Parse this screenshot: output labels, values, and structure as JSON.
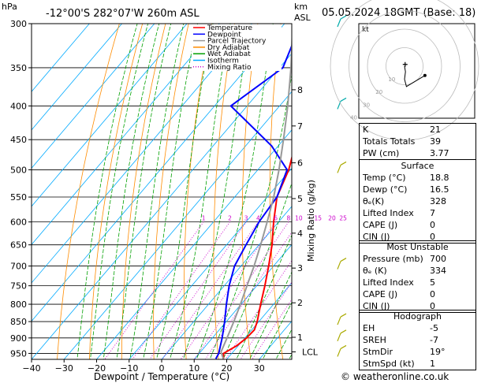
{
  "header": {
    "location": "-12°00'S  282°07'W  260m  ASL",
    "datetime": "05.05.2024  18GMT  (Base: 18)",
    "hpa_label": "hPa",
    "km_label": "km",
    "asl_label": "ASL"
  },
  "legend": [
    {
      "label": "Temperature",
      "color": "#ff0000",
      "style": "solid"
    },
    {
      "label": "Dewpoint",
      "color": "#0000ff",
      "style": "solid"
    },
    {
      "label": "Parcel Trajectory",
      "color": "#999999",
      "style": "solid"
    },
    {
      "label": "Dry Adiabat",
      "color": "#ff8c00",
      "style": "solid"
    },
    {
      "label": "Wet Adiabat",
      "color": "#00a000",
      "style": "solid"
    },
    {
      "label": "Isotherm",
      "color": "#00aaff",
      "style": "solid"
    },
    {
      "label": "Mixing Ratio",
      "color": "#cc00cc",
      "style": "dotted"
    }
  ],
  "chart_data": {
    "type": "line",
    "xlabel": "Dewpoint / Temperature (°C)",
    "ylabel_right": "Mixing Ratio (g/kg)",
    "x_ticks": [
      -40,
      -30,
      -20,
      -10,
      0,
      10,
      20,
      30
    ],
    "xlim": [
      -40,
      40
    ],
    "pressure_levels": [
      300,
      350,
      400,
      450,
      500,
      550,
      600,
      650,
      700,
      750,
      800,
      850,
      900,
      950
    ],
    "ylim": [
      300,
      970
    ],
    "y_scale": "log",
    "km_ticks": [
      {
        "km": "1",
        "p": 898
      },
      {
        "km": "2",
        "p": 796
      },
      {
        "km": "3",
        "p": 705
      },
      {
        "km": "4",
        "p": 624
      },
      {
        "km": "5",
        "p": 553
      },
      {
        "km": "6",
        "p": 488
      },
      {
        "km": "7",
        "p": 429
      },
      {
        "km": "8",
        "p": 378
      }
    ],
    "lcl": {
      "label": "LCL",
      "p": 945
    },
    "mixing_ratio_labels": [
      "1",
      "2",
      "3",
      "4",
      "6",
      "8",
      "10",
      "15",
      "20",
      "25"
    ],
    "mixing_ratios": [
      1,
      2,
      3,
      4,
      6,
      8,
      10,
      15,
      20,
      25
    ],
    "series": [
      {
        "name": "Temperature",
        "color": "#ff0000",
        "p": [
          968,
          950,
          925,
          900,
          875,
          850,
          800,
          750,
          700,
          650,
          600,
          550,
          500,
          450,
          400,
          350
        ],
        "t": [
          18.8,
          17.5,
          19.5,
          20.5,
          20.8,
          19.5,
          16.0,
          12.5,
          8.5,
          4.0,
          -1.5,
          -7.0,
          -10.5,
          -16.0,
          -22.0,
          -31.0
        ]
      },
      {
        "name": "Dewpoint",
        "color": "#0000ff",
        "p": [
          968,
          950,
          925,
          900,
          850,
          800,
          750,
          700,
          650,
          600,
          550,
          500,
          460,
          400,
          350,
          300
        ],
        "t": [
          16.5,
          16.0,
          14.5,
          13.0,
          9.5,
          5.5,
          1.5,
          -2.0,
          -4.0,
          -6.0,
          -7.0,
          -11.0,
          -22.0,
          -45.0,
          -39.0,
          -45.0
        ]
      },
      {
        "name": "Parcel Trajectory",
        "color": "#999999",
        "p": [
          968,
          945,
          900,
          850,
          800,
          750,
          700,
          650,
          600,
          550,
          500,
          450,
          400,
          350,
          300
        ],
        "t": [
          18.8,
          16.3,
          14.5,
          12.3,
          9.8,
          7.0,
          4.0,
          0.5,
          -3.5,
          -8.0,
          -13.5,
          -20.0,
          -27.5,
          -36.5,
          -47.5
        ]
      }
    ]
  },
  "wind_barbs": [
    {
      "p": 300,
      "color": "#00aaaa"
    },
    {
      "p": 400,
      "color": "#00aaaa"
    },
    {
      "p": 500,
      "color": "#aaaa00"
    },
    {
      "p": 700,
      "color": "#aaaa00"
    },
    {
      "p": 850,
      "color": "#aaaa00"
    },
    {
      "p": 900,
      "color": "#aaaa00"
    },
    {
      "p": 950,
      "color": "#aaaa00"
    }
  ],
  "hodograph": {
    "label": "kt",
    "ring_labels": [
      "10",
      "20",
      "30",
      "40"
    ],
    "storm_motion": {
      "dir_deg": 19,
      "speed_kt": 1
    },
    "trace_kt": [
      [
        0,
        0
      ],
      [
        0.5,
        -3
      ],
      [
        0,
        -7
      ],
      [
        1,
        -11
      ],
      [
        6,
        -8
      ],
      [
        11,
        -5
      ]
    ]
  },
  "indices": [
    {
      "label": "K",
      "value": "21"
    },
    {
      "label": "Totals Totals",
      "value": "39"
    },
    {
      "label": "PW (cm)",
      "value": "3.77"
    }
  ],
  "surface": {
    "title": "Surface",
    "rows": [
      {
        "label": "Temp (°C)",
        "value": "18.8"
      },
      {
        "label": "Dewp (°C)",
        "value": "16.5"
      },
      {
        "label": "θₑ(K)",
        "value": "328"
      },
      {
        "label": "Lifted Index",
        "value": "7"
      },
      {
        "label": "CAPE (J)",
        "value": "0"
      },
      {
        "label": "CIN (J)",
        "value": "0"
      }
    ]
  },
  "most_unstable": {
    "title": "Most Unstable",
    "rows": [
      {
        "label": "Pressure (mb)",
        "value": "700"
      },
      {
        "label": "θₑ (K)",
        "value": "334"
      },
      {
        "label": "Lifted Index",
        "value": "5"
      },
      {
        "label": "CAPE (J)",
        "value": "0"
      },
      {
        "label": "CIN (J)",
        "value": "0"
      }
    ]
  },
  "hodograph_table": {
    "title": "Hodograph",
    "rows": [
      {
        "label": "EH",
        "value": "-5"
      },
      {
        "label": "SREH",
        "value": "-7"
      },
      {
        "label": "StmDir",
        "value": "19°"
      },
      {
        "label": "StmSpd (kt)",
        "value": "1"
      }
    ]
  },
  "footer": {
    "credit": "© weatheronline.co.uk"
  }
}
